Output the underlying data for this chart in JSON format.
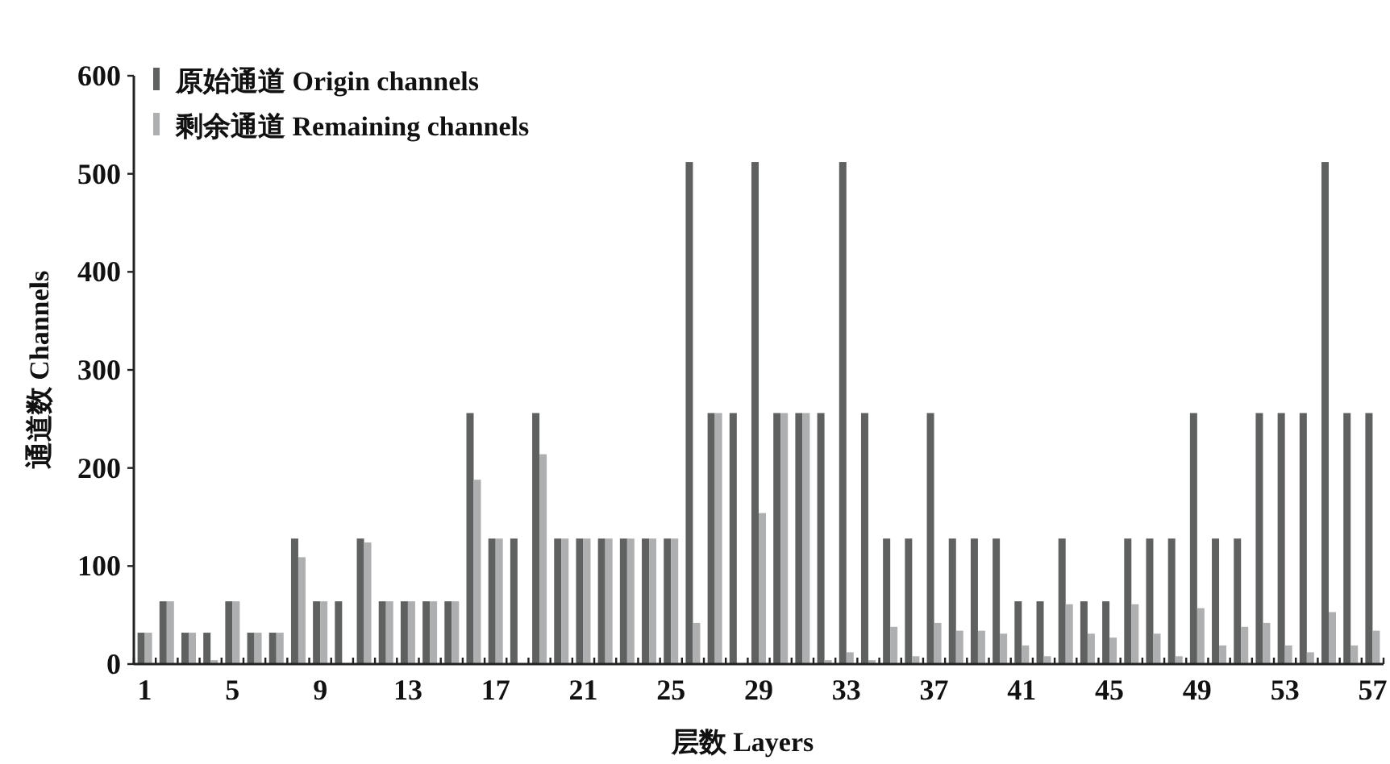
{
  "chart_data": {
    "type": "bar",
    "xlabel": "层数 Layers",
    "ylabel": "通道数 Channels",
    "categories": [
      "1",
      null,
      null,
      null,
      "5",
      null,
      null,
      null,
      "9",
      null,
      null,
      null,
      "13",
      null,
      null,
      null,
      "17",
      null,
      null,
      null,
      "21",
      null,
      null,
      null,
      "25",
      null,
      null,
      null,
      "29",
      null,
      null,
      null,
      "33",
      null,
      null,
      null,
      "37",
      null,
      null,
      null,
      "41",
      null,
      null,
      null,
      "45",
      null,
      null,
      null,
      "49",
      null,
      null,
      null,
      "53",
      null,
      null,
      null,
      "57"
    ],
    "series": [
      {
        "name": "原始通道 Origin channels",
        "color": "#5f6161",
        "values": [
          32,
          64,
          32,
          32,
          64,
          32,
          32,
          128,
          64,
          64,
          128,
          64,
          64,
          64,
          64,
          256,
          128,
          128,
          256,
          128,
          128,
          128,
          128,
          128,
          128,
          512,
          256,
          256,
          512,
          256,
          256,
          256,
          512,
          256,
          128,
          128,
          256,
          128,
          128,
          128,
          64,
          64,
          128,
          64,
          64,
          128,
          128,
          128,
          256,
          128,
          128,
          256,
          256,
          256,
          512,
          256,
          256
        ]
      },
      {
        "name": "剩余通道 Remaining channels",
        "color": "#aeafb1",
        "values": [
          32,
          64,
          32,
          4,
          64,
          32,
          32,
          109,
          64,
          null,
          124,
          64,
          64,
          64,
          64,
          188,
          128,
          null,
          214,
          128,
          128,
          128,
          128,
          128,
          128,
          42,
          256,
          null,
          154,
          256,
          256,
          4,
          12,
          4,
          38,
          8,
          42,
          34,
          34,
          31,
          19,
          8,
          61,
          31,
          27,
          61,
          31,
          8,
          57,
          19,
          38,
          42,
          19,
          12,
          53,
          19,
          34
        ]
      }
    ],
    "ylim": [
      0,
      600
    ],
    "yticks": [
      0,
      100,
      200,
      300,
      400,
      500,
      600
    ],
    "grid": false,
    "legend": "top left"
  }
}
